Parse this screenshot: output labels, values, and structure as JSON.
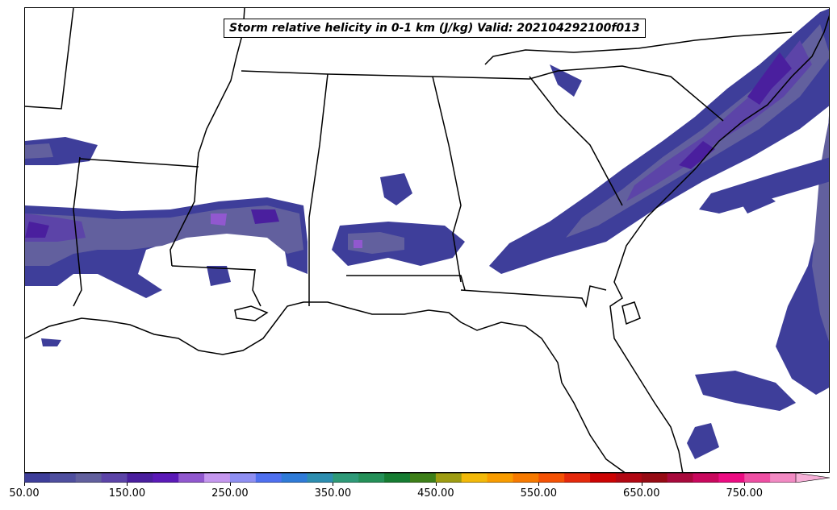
{
  "map": {
    "title": "Storm relative helicity in 0-1 km (J/kg) Valid: 202104292100f013",
    "variable": "Storm relative helicity in 0-1 km",
    "units": "J/kg",
    "valid": "202104292100f013",
    "region": "Southeastern United States"
  },
  "colorbar": {
    "min": 50,
    "max": 800,
    "step": 25,
    "extend": "max",
    "tick_labels": [
      "50.00",
      "150.00",
      "250.00",
      "350.00",
      "450.00",
      "550.00",
      "650.00",
      "750.00"
    ],
    "tick_values": [
      50,
      150,
      250,
      350,
      450,
      550,
      650,
      750
    ],
    "colors": [
      "#3e3e9a",
      "#4f4f9f",
      "#62609e",
      "#5c44a8",
      "#4a1f9e",
      "#5b1ab8",
      "#9158cf",
      "#c597ef",
      "#8f8ff2",
      "#4f70f0",
      "#2f7bd8",
      "#2d8eb0",
      "#2e9a78",
      "#249058",
      "#167c32",
      "#3d7f19",
      "#9e9c12",
      "#f2b90a",
      "#f89c00",
      "#f77a00",
      "#f45205",
      "#e5290c",
      "#cc0303",
      "#b10713",
      "#960b14",
      "#a8093c",
      "#c9085d",
      "#ec0c82",
      "#ee4fa3",
      "#f28ac3"
    ],
    "extend_color": "#f7b0d8"
  }
}
